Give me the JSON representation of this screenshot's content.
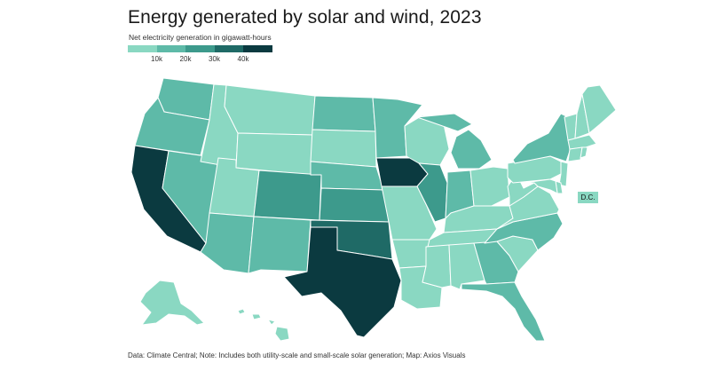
{
  "title": "Energy generated by solar and wind, 2023",
  "subtitle": "Net electricity generation in gigawatt-hours",
  "legend": {
    "colors": [
      "#8ad8c2",
      "#5ebaa8",
      "#3d9a8c",
      "#1f6a66",
      "#0b3a40"
    ],
    "ticks": [
      "10k",
      "20k",
      "30k",
      "40k"
    ]
  },
  "dc_label": "D.C.",
  "source": "Data: Climate Central; Note: Includes both utility-scale and small-scale solar generation; Map: Axios Visuals",
  "colors": {
    "bin1": "#8ad8c2",
    "bin2": "#5ebaa8",
    "bin3": "#3d9a8c",
    "bin4": "#1f6a66",
    "bin5": "#0b3a40"
  },
  "states": [
    {
      "id": "WA",
      "bin": 2
    },
    {
      "id": "OR",
      "bin": 2
    },
    {
      "id": "CA",
      "bin": 5
    },
    {
      "id": "NV",
      "bin": 2
    },
    {
      "id": "ID",
      "bin": 1
    },
    {
      "id": "MT",
      "bin": 1
    },
    {
      "id": "WY",
      "bin": 1
    },
    {
      "id": "UT",
      "bin": 1
    },
    {
      "id": "AZ",
      "bin": 2
    },
    {
      "id": "CO",
      "bin": 3
    },
    {
      "id": "NM",
      "bin": 2
    },
    {
      "id": "ND",
      "bin": 2
    },
    {
      "id": "SD",
      "bin": 1
    },
    {
      "id": "NE",
      "bin": 2
    },
    {
      "id": "KS",
      "bin": 3
    },
    {
      "id": "OK",
      "bin": 4
    },
    {
      "id": "TX",
      "bin": 5
    },
    {
      "id": "MN",
      "bin": 2
    },
    {
      "id": "IA",
      "bin": 5
    },
    {
      "id": "MO",
      "bin": 1
    },
    {
      "id": "AR",
      "bin": 1
    },
    {
      "id": "LA",
      "bin": 1
    },
    {
      "id": "WI",
      "bin": 1
    },
    {
      "id": "IL",
      "bin": 3
    },
    {
      "id": "MI",
      "bin": 2
    },
    {
      "id": "IN",
      "bin": 2
    },
    {
      "id": "OH",
      "bin": 1
    },
    {
      "id": "KY",
      "bin": 1
    },
    {
      "id": "TN",
      "bin": 1
    },
    {
      "id": "MS",
      "bin": 1
    },
    {
      "id": "AL",
      "bin": 1
    },
    {
      "id": "GA",
      "bin": 2
    },
    {
      "id": "FL",
      "bin": 2
    },
    {
      "id": "SC",
      "bin": 1
    },
    {
      "id": "NC",
      "bin": 2
    },
    {
      "id": "VA",
      "bin": 1
    },
    {
      "id": "WV",
      "bin": 1
    },
    {
      "id": "PA",
      "bin": 1
    },
    {
      "id": "NY",
      "bin": 2
    },
    {
      "id": "VT",
      "bin": 1
    },
    {
      "id": "NH",
      "bin": 1
    },
    {
      "id": "ME",
      "bin": 1
    },
    {
      "id": "MA",
      "bin": 1
    },
    {
      "id": "CT",
      "bin": 1
    },
    {
      "id": "RI",
      "bin": 1
    },
    {
      "id": "NJ",
      "bin": 1
    },
    {
      "id": "DE",
      "bin": 1
    },
    {
      "id": "MD",
      "bin": 1
    },
    {
      "id": "AK",
      "bin": 1
    },
    {
      "id": "HI",
      "bin": 1
    }
  ]
}
